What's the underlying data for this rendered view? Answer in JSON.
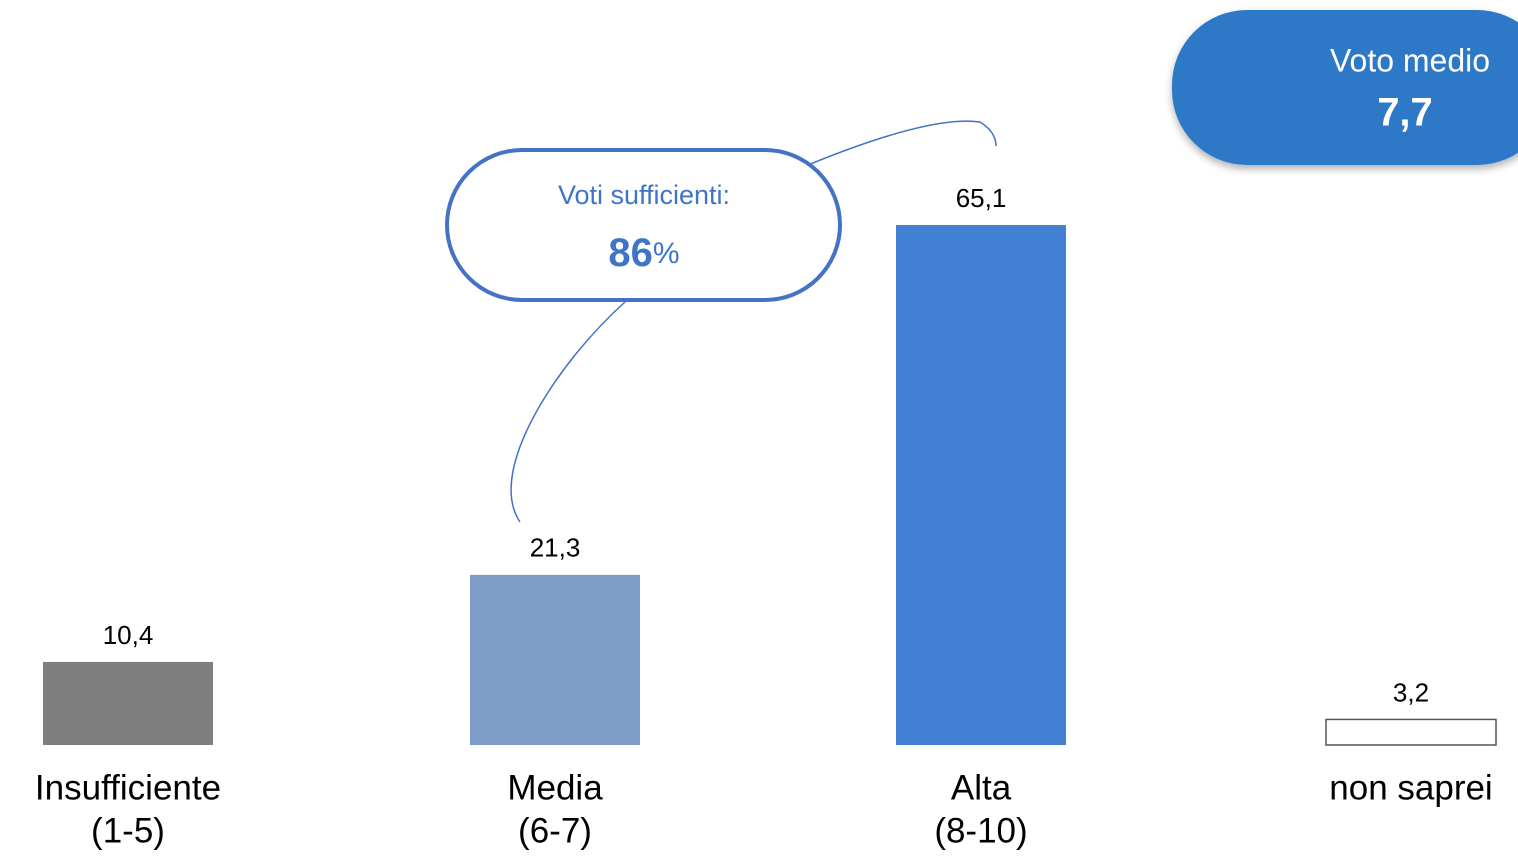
{
  "chart_data": {
    "type": "bar",
    "categories": [
      "Insufficiente",
      "Media",
      "Alta",
      "non saprei"
    ],
    "sublabels": [
      "(1-5)",
      "(6-7)",
      "(8-10)",
      null
    ],
    "values": [
      10.4,
      21.3,
      65.1,
      3.2
    ],
    "value_labels": [
      "10,4",
      "21,3",
      "65,1",
      "3,2"
    ],
    "colors": [
      "#7f7f7f",
      "#7f9cc8",
      "#4180d2",
      "#ffffff"
    ],
    "callout": {
      "label": "Voti sufficienti:",
      "value": 86,
      "value_label": "86",
      "unit": "%"
    },
    "badge": {
      "label": "Voto medio",
      "value": 7.7,
      "value_label": "7,7"
    }
  }
}
